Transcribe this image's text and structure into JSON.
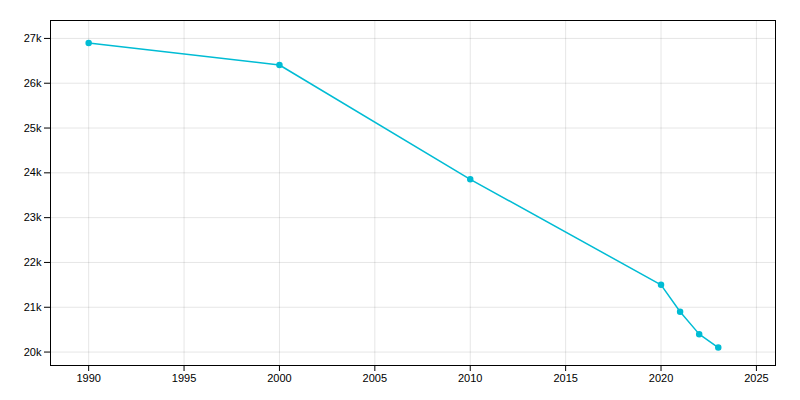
{
  "chart_data": {
    "type": "line",
    "x": [
      1990,
      2000,
      2010,
      2020,
      2021,
      2022,
      2023
    ],
    "values": [
      26900,
      26407,
      23856,
      21500,
      20900,
      20400,
      20100
    ],
    "color": "#00bcd4",
    "marker": "circle",
    "xlim": [
      1988,
      2026
    ],
    "ylim": [
      19700,
      27400
    ],
    "xticks": [
      1990,
      1995,
      2000,
      2005,
      2010,
      2015,
      2020,
      2025
    ],
    "yticks": [
      {
        "value": 20000,
        "label": "20k"
      },
      {
        "value": 21000,
        "label": "21k"
      },
      {
        "value": 22000,
        "label": "22k"
      },
      {
        "value": 23000,
        "label": "23k"
      },
      {
        "value": 24000,
        "label": "24k"
      },
      {
        "value": 25000,
        "label": "25k"
      },
      {
        "value": 26000,
        "label": "26k"
      },
      {
        "value": 27000,
        "label": "27k"
      }
    ],
    "grid": true
  }
}
